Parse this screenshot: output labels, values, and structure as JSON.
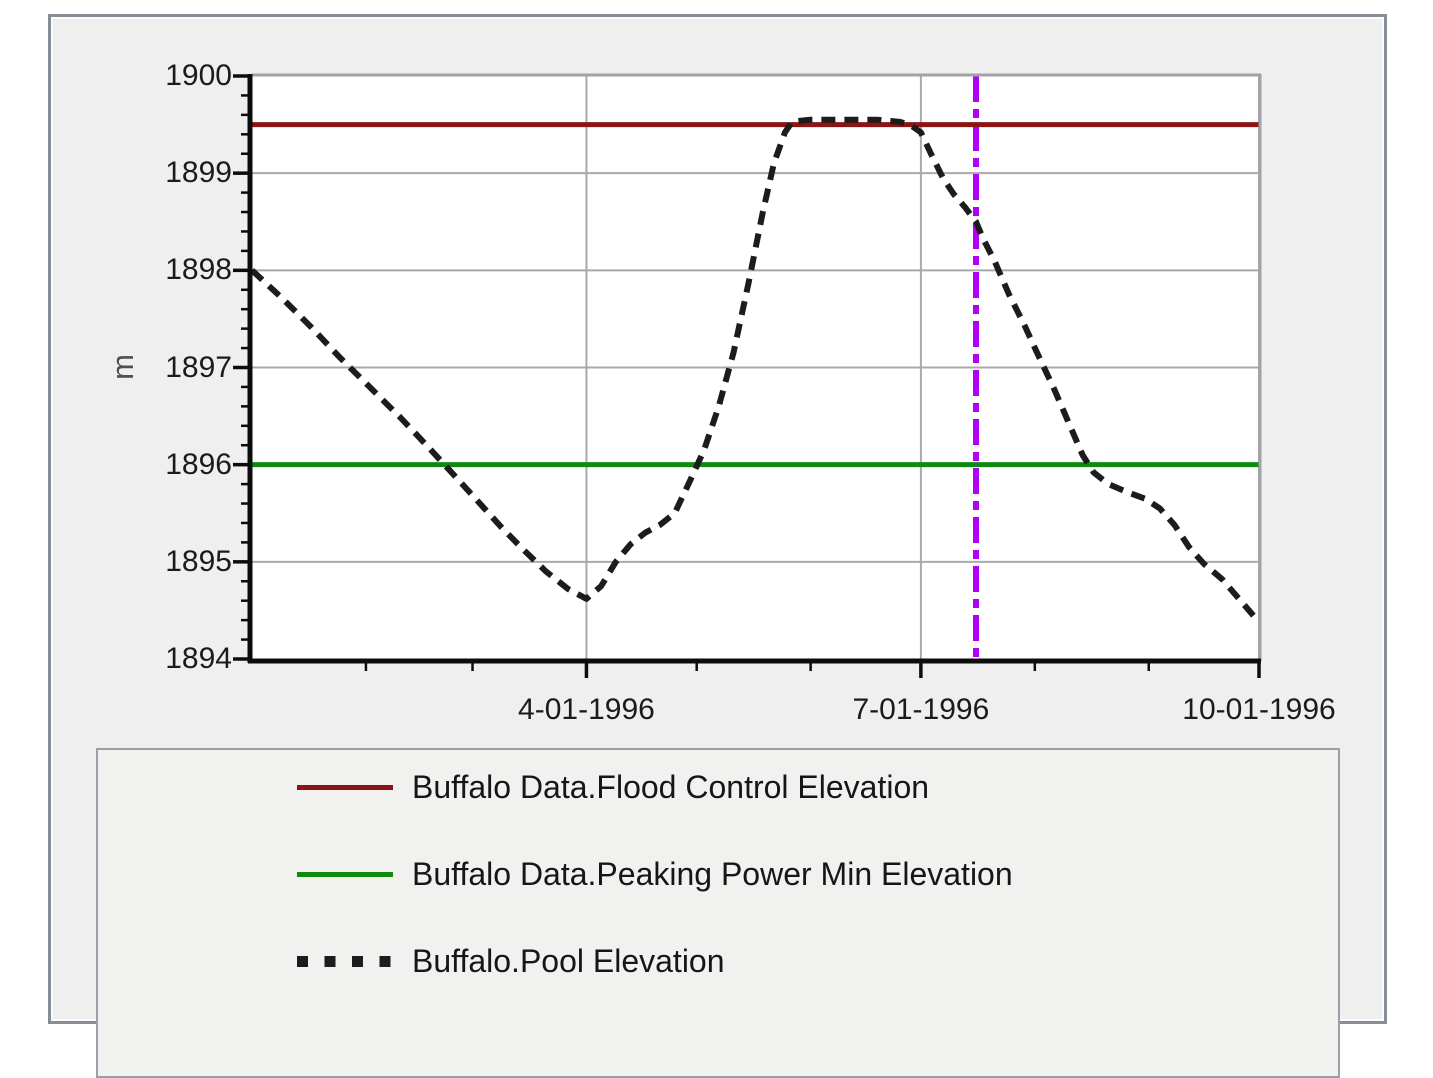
{
  "panel": {
    "background": "#efefef",
    "border_color": "#888e98"
  },
  "chart_data": {
    "type": "line",
    "title": "",
    "xlabel": "",
    "ylabel": "m",
    "grid": true,
    "plot_bg": "#ffffff",
    "grid_color": "#a9a9ad",
    "xlim": [
      "1-01-1996",
      "10-01-1996"
    ],
    "ylim": [
      1894,
      1900
    ],
    "x_axis": {
      "major_ticks": [
        {
          "day": 91,
          "label": "4-01-1996"
        },
        {
          "day": 182,
          "label": "7-01-1996"
        },
        {
          "day": 274,
          "label": "10-01-1996"
        }
      ],
      "minor_tick_days": [
        31,
        60,
        121,
        152,
        213,
        244
      ],
      "total_days": 274
    },
    "y_axis": {
      "min": 1894,
      "max": 1900,
      "major_step": 1,
      "minor_step": 0.2,
      "tick_labels": [
        "1894",
        "1895",
        "1896",
        "1897",
        "1898",
        "1899",
        "1900"
      ]
    },
    "series": [
      {
        "name": "Buffalo Data.Flood Control Elevation",
        "type": "hline",
        "value": 1899.5,
        "color": "#8c1414",
        "style": "solid",
        "width": 5
      },
      {
        "name": "Buffalo Data.Peaking Power Min Elevation",
        "type": "hline",
        "value": 1896.0,
        "color": "#0f8a0f",
        "style": "solid",
        "width": 5
      },
      {
        "name": "Buffalo.Pool Elevation",
        "type": "line",
        "color": "#1c1c1c",
        "style": "dashed",
        "width": 6,
        "points": [
          [
            0,
            1898.0
          ],
          [
            8,
            1897.72
          ],
          [
            16,
            1897.42
          ],
          [
            24,
            1897.1
          ],
          [
            32,
            1896.8
          ],
          [
            40,
            1896.5
          ],
          [
            48,
            1896.18
          ],
          [
            56,
            1895.85
          ],
          [
            62,
            1895.6
          ],
          [
            68,
            1895.35
          ],
          [
            74,
            1895.12
          ],
          [
            80,
            1894.9
          ],
          [
            86,
            1894.72
          ],
          [
            91,
            1894.62
          ],
          [
            95,
            1894.75
          ],
          [
            99,
            1895.0
          ],
          [
            103,
            1895.18
          ],
          [
            107,
            1895.3
          ],
          [
            111,
            1895.38
          ],
          [
            115,
            1895.5
          ],
          [
            119,
            1895.82
          ],
          [
            123,
            1896.15
          ],
          [
            127,
            1896.6
          ],
          [
            131,
            1897.15
          ],
          [
            135,
            1897.85
          ],
          [
            139,
            1898.6
          ],
          [
            142,
            1899.1
          ],
          [
            145,
            1899.42
          ],
          [
            147,
            1899.53
          ],
          [
            152,
            1899.55
          ],
          [
            158,
            1899.55
          ],
          [
            164,
            1899.55
          ],
          [
            170,
            1899.55
          ],
          [
            176,
            1899.53
          ],
          [
            179,
            1899.5
          ],
          [
            182,
            1899.42
          ],
          [
            185,
            1899.18
          ],
          [
            188,
            1898.95
          ],
          [
            191,
            1898.78
          ],
          [
            194,
            1898.65
          ],
          [
            197,
            1898.5
          ],
          [
            199,
            1898.32
          ],
          [
            202,
            1898.1
          ],
          [
            206,
            1897.75
          ],
          [
            210,
            1897.45
          ],
          [
            214,
            1897.12
          ],
          [
            218,
            1896.8
          ],
          [
            222,
            1896.45
          ],
          [
            226,
            1896.1
          ],
          [
            229,
            1895.92
          ],
          [
            233,
            1895.8
          ],
          [
            238,
            1895.72
          ],
          [
            243,
            1895.65
          ],
          [
            247,
            1895.55
          ],
          [
            251,
            1895.38
          ],
          [
            255,
            1895.15
          ],
          [
            259,
            1894.98
          ],
          [
            264,
            1894.82
          ],
          [
            269,
            1894.6
          ],
          [
            274,
            1894.38
          ]
        ]
      }
    ],
    "time_marker": {
      "day": 197,
      "color": "#b000f5",
      "style": "dash-dot",
      "width": 6
    }
  },
  "legend": {
    "rows": [
      {
        "swatch": "solid-darkred"
      },
      {
        "swatch": "solid-green"
      },
      {
        "swatch": "dotted-black"
      }
    ]
  }
}
